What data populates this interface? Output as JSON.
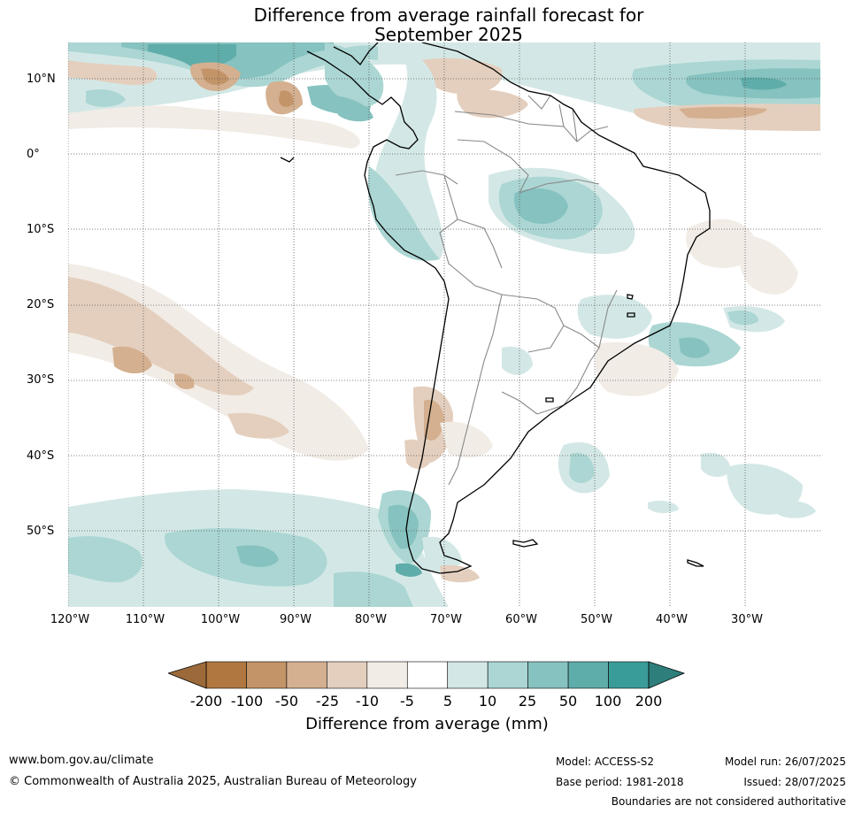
{
  "title": {
    "line1": "Difference from average rainfall forecast for",
    "line2": "September 2025"
  },
  "axes": {
    "lat_labels": [
      "10°N",
      "0°",
      "10°S",
      "20°S",
      "30°S",
      "40°S",
      "50°S"
    ],
    "lon_labels": [
      "120°W",
      "110°W",
      "100°W",
      "90°W",
      "80°W",
      "70°W",
      "60°W",
      "50°W",
      "40°W",
      "30°W"
    ]
  },
  "legend": {
    "ticks": [
      "-200",
      "-100",
      "-50",
      "-25",
      "-10",
      "-5",
      "5",
      "10",
      "25",
      "50",
      "100",
      "200"
    ],
    "colors": [
      "#b07840",
      "#c39468",
      "#d4b090",
      "#e4cfbe",
      "#f2ece6",
      "#ffffff",
      "#d3e8e6",
      "#abd6d3",
      "#86c2bf",
      "#5fadaa",
      "#3a9c98"
    ],
    "below_color": "#9c6a3a",
    "above_color": "#2e7f7b",
    "label": "Difference from average (mm)"
  },
  "footer": {
    "url": "www.bom.gov.au/climate",
    "copyright": "© Commonwealth of Australia 2025, Australian Bureau of Meteorology",
    "model": "Model: ACCESS-S2",
    "base_period": "Base period: 1981-2018",
    "model_run": "Model run: 26/07/2025",
    "issued": "Issued: 28/07/2025",
    "disclaimer": "Boundaries are not considered authoritative"
  }
}
